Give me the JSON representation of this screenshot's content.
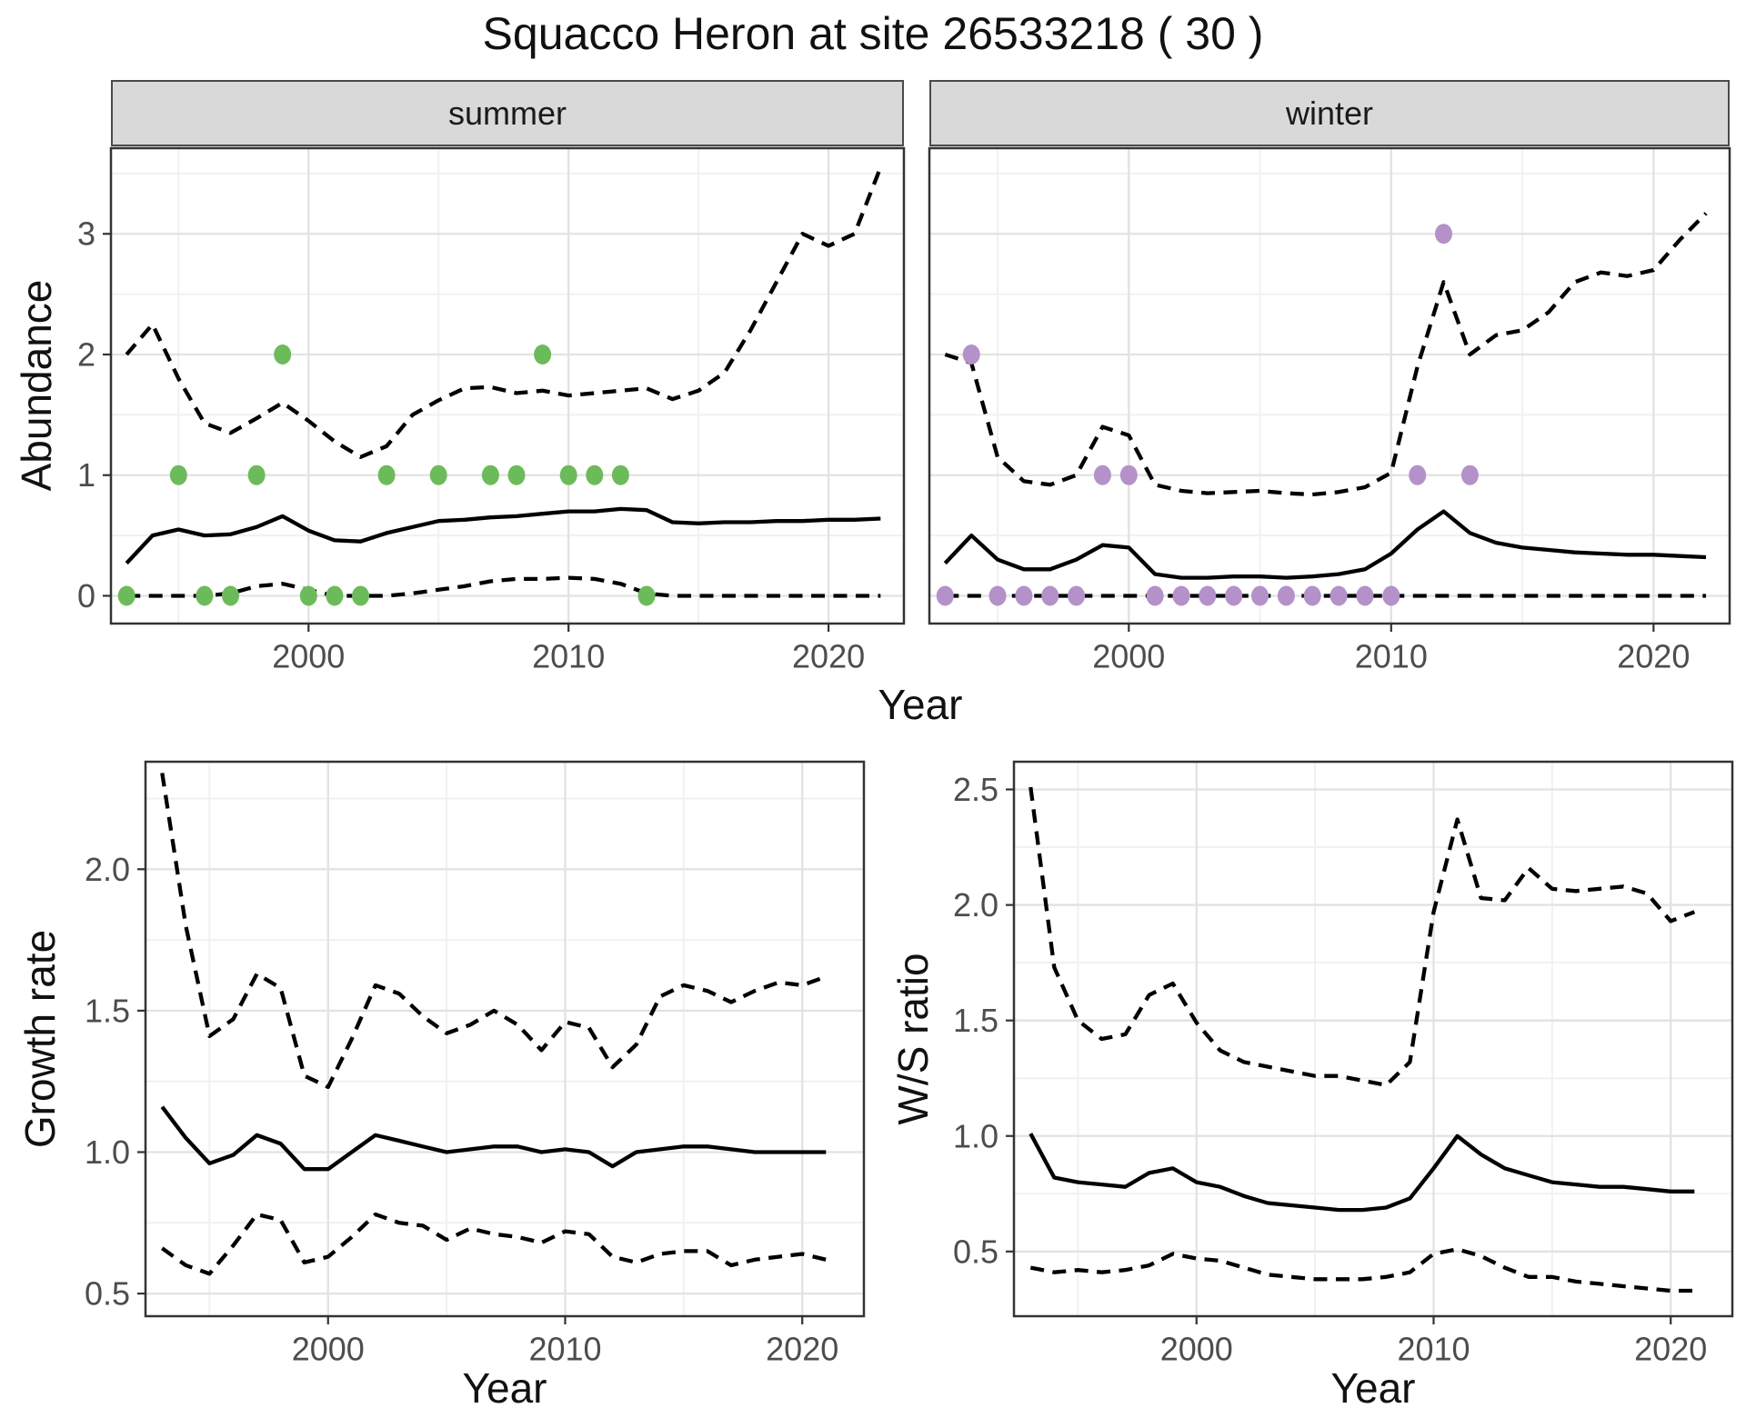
{
  "title": "Squacco Heron at site 26533218 ( 30 )",
  "colors": {
    "summer_point": "#6CBB5A",
    "winter_point": "#B491C8",
    "line": "#000000",
    "strip_bg": "#D9D9D9",
    "grid_major": "#E2E2E2",
    "grid_minor": "#F1F1F1",
    "panel_border": "#333333",
    "tick_label": "#4D4D4D"
  },
  "chart_data": [
    {
      "id": "abundance-summer",
      "type": "line",
      "facet_label": "summer",
      "xlabel": "Year",
      "ylabel": "Abundance",
      "xlim": [
        1992.4,
        2022.9
      ],
      "ylim": [
        -0.23,
        3.71
      ],
      "xticks": [
        2000,
        2010,
        2020
      ],
      "xtick_labels": [
        "2000",
        "2010",
        "2020"
      ],
      "xminor": [
        1995,
        2005,
        2015
      ],
      "yticks": [
        0,
        1,
        2,
        3
      ],
      "ytick_labels": [
        "0",
        "1",
        "2",
        "3"
      ],
      "yminor": [
        0.5,
        1.5,
        2.5,
        3.5
      ],
      "show_y_labels": true,
      "grid": true,
      "legend": "none",
      "series": [
        {
          "name": "median",
          "style": "solid",
          "x": [
            1993,
            1994,
            1995,
            1996,
            1997,
            1998,
            1999,
            2000,
            2001,
            2002,
            2003,
            2004,
            2005,
            2006,
            2007,
            2008,
            2009,
            2010,
            2011,
            2012,
            2013,
            2014,
            2015,
            2016,
            2017,
            2018,
            2019,
            2020,
            2021,
            2022
          ],
          "y": [
            0.27,
            0.5,
            0.55,
            0.5,
            0.51,
            0.57,
            0.66,
            0.54,
            0.46,
            0.45,
            0.52,
            0.57,
            0.62,
            0.63,
            0.65,
            0.66,
            0.68,
            0.7,
            0.7,
            0.72,
            0.71,
            0.61,
            0.6,
            0.61,
            0.61,
            0.62,
            0.62,
            0.63,
            0.63,
            0.64
          ]
        },
        {
          "name": "upper-credible",
          "style": "dashed",
          "x": [
            1993,
            1994,
            1995,
            1996,
            1997,
            1998,
            1999,
            2000,
            2001,
            2002,
            2003,
            2004,
            2005,
            2006,
            2007,
            2008,
            2009,
            2010,
            2011,
            2012,
            2013,
            2014,
            2015,
            2016,
            2017,
            2018,
            2019,
            2020,
            2021,
            2022
          ],
          "y": [
            2.0,
            2.25,
            1.8,
            1.43,
            1.35,
            1.47,
            1.6,
            1.45,
            1.28,
            1.15,
            1.24,
            1.5,
            1.62,
            1.72,
            1.73,
            1.68,
            1.7,
            1.66,
            1.68,
            1.7,
            1.72,
            1.63,
            1.7,
            1.85,
            2.2,
            2.6,
            3.0,
            2.9,
            3.0,
            3.55
          ]
        },
        {
          "name": "lower-credible",
          "style": "dashed",
          "x": [
            1993,
            1994,
            1995,
            1996,
            1997,
            1998,
            1999,
            2000,
            2001,
            2002,
            2003,
            2004,
            2005,
            2006,
            2007,
            2008,
            2009,
            2010,
            2011,
            2012,
            2013,
            2014,
            2015,
            2016,
            2017,
            2018,
            2019,
            2020,
            2021,
            2022
          ],
          "y": [
            0,
            0,
            0,
            0,
            0.02,
            0.08,
            0.1,
            0.05,
            0,
            0,
            0,
            0.02,
            0.05,
            0.08,
            0.12,
            0.14,
            0.14,
            0.15,
            0.14,
            0.1,
            0.02,
            0,
            0,
            0,
            0,
            0,
            0,
            0,
            0,
            0
          ]
        }
      ],
      "points": {
        "name": "observed-count",
        "color": "#6CBB5A",
        "x": [
          1993,
          1995,
          1996,
          1997,
          1998,
          1999,
          2000,
          2001,
          2002,
          2003,
          2005,
          2007,
          2008,
          2009,
          2010,
          2011,
          2012,
          2013
        ],
        "y": [
          0,
          1,
          0,
          0,
          1,
          2,
          0,
          0,
          0,
          1,
          1,
          1,
          1,
          2,
          1,
          1,
          1,
          0
        ]
      }
    },
    {
      "id": "abundance-winter",
      "type": "line",
      "facet_label": "winter",
      "xlabel": "Year",
      "ylabel": "Abundance",
      "xlim": [
        1992.4,
        2022.9
      ],
      "ylim": [
        -0.23,
        3.71
      ],
      "xticks": [
        2000,
        2010,
        2020
      ],
      "xtick_labels": [
        "2000",
        "2010",
        "2020"
      ],
      "xminor": [
        1995,
        2005,
        2015
      ],
      "yticks": [
        0,
        1,
        2,
        3
      ],
      "ytick_labels": [
        "0",
        "1",
        "2",
        "3"
      ],
      "yminor": [
        0.5,
        1.5,
        2.5,
        3.5
      ],
      "show_y_labels": false,
      "grid": true,
      "legend": "none",
      "series": [
        {
          "name": "median",
          "style": "solid",
          "x": [
            1993,
            1994,
            1995,
            1996,
            1997,
            1998,
            1999,
            2000,
            2001,
            2002,
            2003,
            2004,
            2005,
            2006,
            2007,
            2008,
            2009,
            2010,
            2011,
            2012,
            2013,
            2014,
            2015,
            2016,
            2017,
            2018,
            2019,
            2020,
            2021,
            2022
          ],
          "y": [
            0.27,
            0.5,
            0.3,
            0.22,
            0.22,
            0.3,
            0.42,
            0.4,
            0.18,
            0.15,
            0.15,
            0.16,
            0.16,
            0.15,
            0.16,
            0.18,
            0.22,
            0.35,
            0.55,
            0.7,
            0.52,
            0.44,
            0.4,
            0.38,
            0.36,
            0.35,
            0.34,
            0.34,
            0.33,
            0.32
          ]
        },
        {
          "name": "upper-credible",
          "style": "dashed",
          "x": [
            1993,
            1994,
            1995,
            1996,
            1997,
            1998,
            1999,
            2000,
            2001,
            2002,
            2003,
            2004,
            2005,
            2006,
            2007,
            2008,
            2009,
            2010,
            2011,
            2012,
            2013,
            2014,
            2015,
            2016,
            2017,
            2018,
            2019,
            2020,
            2021,
            2022
          ],
          "y": [
            2.0,
            1.93,
            1.15,
            0.95,
            0.92,
            1.0,
            1.4,
            1.33,
            0.92,
            0.87,
            0.85,
            0.86,
            0.87,
            0.85,
            0.84,
            0.86,
            0.9,
            1.02,
            1.9,
            2.6,
            2.0,
            2.16,
            2.2,
            2.35,
            2.6,
            2.68,
            2.65,
            2.7,
            2.95,
            3.17
          ]
        },
        {
          "name": "lower-credible",
          "style": "dashed",
          "x": [
            1993,
            1994,
            1995,
            1996,
            1997,
            1998,
            1999,
            2000,
            2001,
            2002,
            2003,
            2004,
            2005,
            2006,
            2007,
            2008,
            2009,
            2010,
            2011,
            2012,
            2013,
            2014,
            2015,
            2016,
            2017,
            2018,
            2019,
            2020,
            2021,
            2022
          ],
          "y": [
            0,
            0,
            0,
            0,
            0,
            0,
            0,
            0,
            0,
            0,
            0,
            0,
            0,
            0,
            0,
            0,
            0,
            0,
            0,
            0,
            0,
            0,
            0,
            0,
            0,
            0,
            0,
            0,
            0,
            0
          ]
        }
      ],
      "points": {
        "name": "observed-count",
        "color": "#B491C8",
        "x": [
          1993,
          1994,
          1995,
          1996,
          1997,
          1998,
          1999,
          2000,
          2001,
          2002,
          2003,
          2004,
          2005,
          2006,
          2007,
          2008,
          2009,
          2010,
          2011,
          2012,
          2013
        ],
        "y": [
          0,
          2,
          0,
          0,
          0,
          0,
          1,
          1,
          0,
          0,
          0,
          0,
          0,
          0,
          0,
          0,
          0,
          0,
          1,
          3,
          1
        ]
      }
    },
    {
      "id": "growth-rate",
      "type": "line",
      "facet_label": "",
      "xlabel": "Year",
      "ylabel": "Growth rate",
      "xlim": [
        1992.3,
        2022.6
      ],
      "ylim": [
        0.42,
        2.38
      ],
      "xticks": [
        2000,
        2010,
        2020
      ],
      "xtick_labels": [
        "2000",
        "2010",
        "2020"
      ],
      "xminor": [
        1995,
        2005,
        2015
      ],
      "yticks": [
        0.5,
        1.0,
        1.5,
        2.0
      ],
      "ytick_labels": [
        "0.5",
        "1.0",
        "1.5",
        "2.0"
      ],
      "yminor": [
        0.75,
        1.25,
        1.75,
        2.25
      ],
      "show_y_labels": true,
      "grid": true,
      "legend": "none",
      "series": [
        {
          "name": "median",
          "style": "solid",
          "x": [
            1993,
            1994,
            1995,
            1996,
            1997,
            1998,
            1999,
            2000,
            2001,
            2002,
            2003,
            2004,
            2005,
            2006,
            2007,
            2008,
            2009,
            2010,
            2011,
            2012,
            2013,
            2014,
            2015,
            2016,
            2017,
            2018,
            2019,
            2020,
            2021
          ],
          "y": [
            1.16,
            1.05,
            0.96,
            0.99,
            1.06,
            1.03,
            0.94,
            0.94,
            1.0,
            1.06,
            1.04,
            1.02,
            1.0,
            1.01,
            1.02,
            1.02,
            1.0,
            1.01,
            1.0,
            0.95,
            1.0,
            1.01,
            1.02,
            1.02,
            1.01,
            1.0,
            1.0,
            1.0,
            1.0
          ]
        },
        {
          "name": "upper-credible",
          "style": "dashed",
          "x": [
            1993,
            1994,
            1995,
            1996,
            1997,
            1998,
            1999,
            2000,
            2001,
            2002,
            2003,
            2004,
            2005,
            2006,
            2007,
            2008,
            2009,
            2010,
            2011,
            2012,
            2013,
            2014,
            2015,
            2016,
            2017,
            2018,
            2019,
            2020,
            2021
          ],
          "y": [
            2.34,
            1.8,
            1.41,
            1.47,
            1.63,
            1.58,
            1.27,
            1.23,
            1.4,
            1.59,
            1.56,
            1.48,
            1.42,
            1.45,
            1.5,
            1.45,
            1.36,
            1.46,
            1.44,
            1.3,
            1.38,
            1.55,
            1.59,
            1.57,
            1.53,
            1.57,
            1.6,
            1.59,
            1.62
          ]
        },
        {
          "name": "lower-credible",
          "style": "dashed",
          "x": [
            1993,
            1994,
            1995,
            1996,
            1997,
            1998,
            1999,
            2000,
            2001,
            2002,
            2003,
            2004,
            2005,
            2006,
            2007,
            2008,
            2009,
            2010,
            2011,
            2012,
            2013,
            2014,
            2015,
            2016,
            2017,
            2018,
            2019,
            2020,
            2021
          ],
          "y": [
            0.66,
            0.6,
            0.57,
            0.67,
            0.78,
            0.76,
            0.61,
            0.63,
            0.7,
            0.78,
            0.75,
            0.74,
            0.69,
            0.73,
            0.71,
            0.7,
            0.68,
            0.72,
            0.71,
            0.63,
            0.61,
            0.64,
            0.65,
            0.65,
            0.6,
            0.62,
            0.63,
            0.64,
            0.62
          ]
        }
      ]
    },
    {
      "id": "ws-ratio",
      "type": "line",
      "facet_label": "",
      "xlabel": "Year",
      "ylabel": "W/S ratio",
      "xlim": [
        1992.3,
        2022.6
      ],
      "ylim": [
        0.22,
        2.62
      ],
      "xticks": [
        2000,
        2010,
        2020
      ],
      "xtick_labels": [
        "2000",
        "2010",
        "2020"
      ],
      "xminor": [
        1995,
        2005,
        2015
      ],
      "yticks": [
        0.5,
        1.0,
        1.5,
        2.0,
        2.5
      ],
      "ytick_labels": [
        "0.5",
        "1.0",
        "1.5",
        "2.0",
        "2.5"
      ],
      "yminor": [
        0.75,
        1.25,
        1.75,
        2.25
      ],
      "show_y_labels": true,
      "grid": true,
      "legend": "none",
      "series": [
        {
          "name": "median",
          "style": "solid",
          "x": [
            1993,
            1994,
            1995,
            1996,
            1997,
            1998,
            1999,
            2000,
            2001,
            2002,
            2003,
            2004,
            2005,
            2006,
            2007,
            2008,
            2009,
            2010,
            2011,
            2012,
            2013,
            2014,
            2015,
            2016,
            2017,
            2018,
            2019,
            2020,
            2021
          ],
          "y": [
            1.01,
            0.82,
            0.8,
            0.79,
            0.78,
            0.84,
            0.86,
            0.8,
            0.78,
            0.74,
            0.71,
            0.7,
            0.69,
            0.68,
            0.68,
            0.69,
            0.73,
            0.86,
            1.0,
            0.92,
            0.86,
            0.83,
            0.8,
            0.79,
            0.78,
            0.78,
            0.77,
            0.76,
            0.76
          ]
        },
        {
          "name": "upper-credible",
          "style": "dashed",
          "x": [
            1993,
            1994,
            1995,
            1996,
            1997,
            1998,
            1999,
            2000,
            2001,
            2002,
            2003,
            2004,
            2005,
            2006,
            2007,
            2008,
            2009,
            2010,
            2011,
            2012,
            2013,
            2014,
            2015,
            2016,
            2017,
            2018,
            2019,
            2020,
            2021
          ],
          "y": [
            2.51,
            1.73,
            1.5,
            1.42,
            1.44,
            1.61,
            1.66,
            1.49,
            1.37,
            1.32,
            1.3,
            1.28,
            1.26,
            1.26,
            1.24,
            1.22,
            1.32,
            1.97,
            2.37,
            2.03,
            2.02,
            2.16,
            2.07,
            2.06,
            2.07,
            2.08,
            2.05,
            1.93,
            1.97
          ]
        },
        {
          "name": "lower-credible",
          "style": "dashed",
          "x": [
            1993,
            1994,
            1995,
            1996,
            1997,
            1998,
            1999,
            2000,
            2001,
            2002,
            2003,
            2004,
            2005,
            2006,
            2007,
            2008,
            2009,
            2010,
            2011,
            2012,
            2013,
            2014,
            2015,
            2016,
            2017,
            2018,
            2019,
            2020,
            2021
          ],
          "y": [
            0.43,
            0.41,
            0.42,
            0.41,
            0.42,
            0.44,
            0.49,
            0.47,
            0.46,
            0.43,
            0.4,
            0.39,
            0.38,
            0.38,
            0.38,
            0.39,
            0.41,
            0.49,
            0.51,
            0.48,
            0.43,
            0.39,
            0.39,
            0.37,
            0.36,
            0.35,
            0.34,
            0.33,
            0.33
          ]
        }
      ]
    }
  ]
}
